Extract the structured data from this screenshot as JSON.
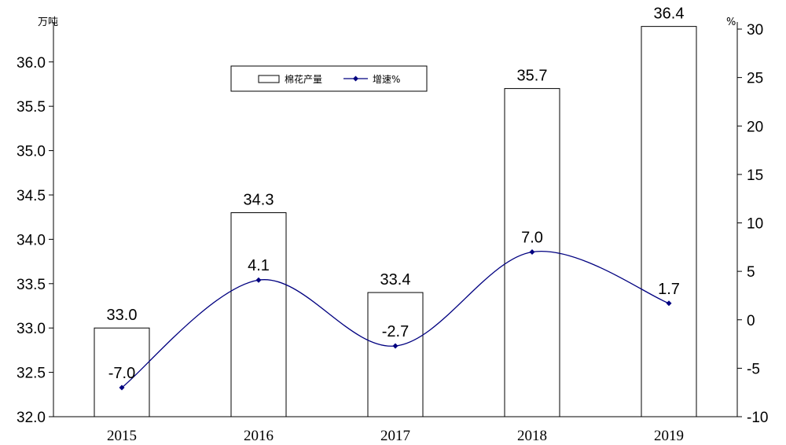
{
  "chart_data": {
    "type": "bar",
    "categories": [
      "2015",
      "2016",
      "2017",
      "2018",
      "2019"
    ],
    "series": [
      {
        "name": "棉花产量",
        "type": "bar",
        "axis": "left",
        "values": [
          33.0,
          34.3,
          33.4,
          35.7,
          36.4
        ],
        "labels": [
          "33.0",
          "34.3",
          "33.4",
          "35.7",
          "36.4"
        ]
      },
      {
        "name": "增速%",
        "type": "line",
        "axis": "right",
        "smooth": true,
        "values": [
          -7.0,
          4.1,
          -2.7,
          7.0,
          1.7
        ],
        "labels": [
          "-7.0",
          "4.1",
          "-2.7",
          "7.0",
          "1.7"
        ]
      }
    ],
    "ylabel": "万吨",
    "ylabel_right": "%",
    "ylim": [
      32.0,
      36.4
    ],
    "ylim_right": [
      -10,
      30
    ],
    "yticks": [
      "32.0",
      "32.5",
      "33.0",
      "33.5",
      "34.0",
      "34.5",
      "35.0",
      "35.5",
      "36.0"
    ],
    "yticks_right": [
      "-10",
      "-5",
      "0",
      "5",
      "10",
      "15",
      "20",
      "25",
      "30"
    ],
    "grid": false,
    "legend_position": "top-center",
    "colors": {
      "bar_fill": "#ffffff",
      "bar_stroke": "#000000",
      "line": "#000080"
    }
  }
}
